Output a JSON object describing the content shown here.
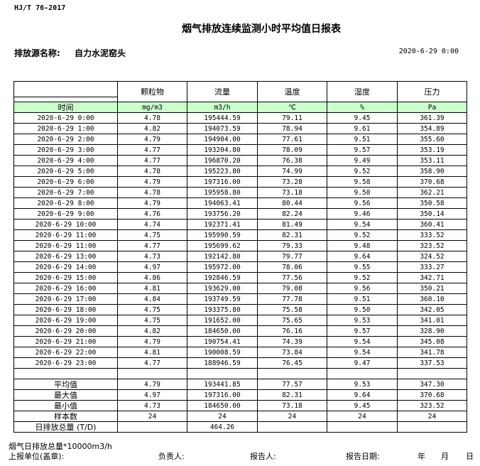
{
  "standard": "HJ/T  76-2017",
  "title": "烟气排放连续监测小时平均值日报表",
  "source_label": "排放源名称:",
  "source_name": "自力水泥窑头",
  "report_datetime": "2020-6-29 0:00",
  "columns": [
    "颗粒物",
    "流量",
    "温度",
    "湿度",
    "压力"
  ],
  "units": {
    "time": "时间",
    "values": [
      "mg/m3",
      "m3/h",
      "℃",
      "%",
      "Pa"
    ]
  },
  "rows": [
    [
      "2020-6-29 0:00",
      "4.78",
      "195444.59",
      "79.11",
      "9.45",
      "361.39"
    ],
    [
      "2020-6-29 1:00",
      "4.82",
      "194073.59",
      "78.94",
      "9.61",
      "354.89"
    ],
    [
      "2020-6-29 2:00",
      "4.79",
      "194904.00",
      "77.61",
      "9.51",
      "355.60"
    ],
    [
      "2020-6-29 3:00",
      "4.77",
      "193204.80",
      "78.09",
      "9.57",
      "353.19"
    ],
    [
      "2020-6-29 4:00",
      "4.77",
      "196870.20",
      "76.38",
      "9.49",
      "353.11"
    ],
    [
      "2020-6-29 5:00",
      "4.78",
      "195223.80",
      "74.99",
      "9.52",
      "358.90"
    ],
    [
      "2020-6-29 6:00",
      "4.79",
      "197316.00",
      "73.28",
      "9.58",
      "370.68"
    ],
    [
      "2020-6-29 7:00",
      "4.78",
      "195958.80",
      "73.18",
      "9.50",
      "362.21"
    ],
    [
      "2020-6-29 8:00",
      "4.79",
      "194063.41",
      "80.44",
      "9.56",
      "350.58"
    ],
    [
      "2020-6-29 9:00",
      "4.76",
      "193756.20",
      "82.24",
      "9.46",
      "350.14"
    ],
    [
      "2020-6-29 10:00",
      "4.74",
      "192371.41",
      "81.49",
      "9.54",
      "360.41"
    ],
    [
      "2020-6-29 11:00",
      "4.75",
      "195990.59",
      "82.31",
      "9.52",
      "333.52"
    ],
    [
      "2020-6-29 11:00",
      "4.77",
      "195699.62",
      "79.33",
      "9.48",
      "323.52"
    ],
    [
      "2020-6-29 13:00",
      "4.73",
      "192142.80",
      "79.77",
      "9.64",
      "324.52"
    ],
    [
      "2020-6-29 14:00",
      "4.97",
      "195972.00",
      "78.06",
      "9.55",
      "333.27"
    ],
    [
      "2020-6-29 15:00",
      "4.86",
      "192846.59",
      "77.56",
      "9.52",
      "342.71"
    ],
    [
      "2020-6-29 16:00",
      "4.81",
      "193629.00",
      "79.08",
      "9.56",
      "350.21"
    ],
    [
      "2020-6-29 17:00",
      "4.84",
      "193749.59",
      "77.78",
      "9.51",
      "360.10"
    ],
    [
      "2020-6-29 18:00",
      "4.75",
      "193375.80",
      "75.58",
      "9.50",
      "342.05"
    ],
    [
      "2020-6-29 19:00",
      "4.75",
      "191652.00",
      "75.65",
      "9.53",
      "341.01"
    ],
    [
      "2020-6-29 20:00",
      "4.82",
      "184650.00",
      "76.16",
      "9.57",
      "328.90"
    ],
    [
      "2020-6-29 21:00",
      "4.79",
      "190754.41",
      "74.39",
      "9.54",
      "345.08"
    ],
    [
      "2020-6-29 22:00",
      "4.81",
      "190008.59",
      "73.84",
      "9.54",
      "341.78"
    ],
    [
      "2020-6-29 23:00",
      "4.77",
      "188946.59",
      "76.45",
      "9.47",
      "337.53"
    ]
  ],
  "summary": [
    [
      "平均值",
      "4.79",
      "193441.85",
      "77.57",
      "9.53",
      "347.30"
    ],
    [
      "最大值",
      "4.97",
      "197316.00",
      "82.31",
      "9.64",
      "370.68"
    ],
    [
      "最小值",
      "4.73",
      "184650.00",
      "73.18",
      "9.45",
      "323.52"
    ],
    [
      "样本数",
      "24",
      "24",
      "24",
      "24",
      "24"
    ],
    [
      "日排放总量 (T/D)",
      "",
      "464.26",
      "",
      "",
      ""
    ]
  ],
  "footer": {
    "note": "烟气日排放总量*10000m3/h",
    "unit_label": "上报单位(盖章):",
    "responsible_label": "负责人:",
    "reporter_label": "报告人:",
    "report_date_label": "报告日期:",
    "year": "年",
    "month": "月",
    "day": "日"
  }
}
